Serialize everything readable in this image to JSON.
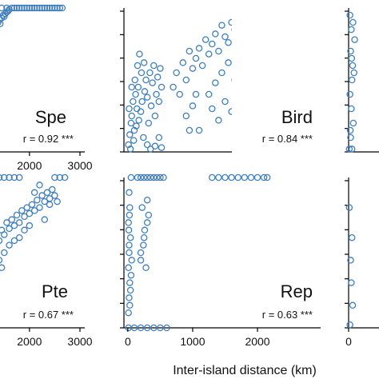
{
  "figure": {
    "x_axis_title": "Inter-island distance (km)"
  },
  "chart_data": [
    {
      "id": "spe",
      "type": "scatter",
      "label": "Spe",
      "stat": "r = 0.92 ***",
      "xlim": [
        1100,
        3000
      ],
      "ylim": [
        0,
        1
      ],
      "xticks": [
        2000,
        3000
      ],
      "xtick_labels": [
        "2000",
        "3000"
      ],
      "point_color": "#3f7fbf",
      "points": [
        [
          1100,
          0.7
        ],
        [
          1150,
          0.74
        ],
        [
          1180,
          0.78
        ],
        [
          1200,
          0.72
        ],
        [
          1230,
          0.8
        ],
        [
          1250,
          0.83
        ],
        [
          1280,
          0.76
        ],
        [
          1300,
          0.85
        ],
        [
          1320,
          0.88
        ],
        [
          1350,
          0.86
        ],
        [
          1380,
          0.9
        ],
        [
          1400,
          0.92
        ],
        [
          1420,
          0.89
        ],
        [
          1450,
          0.93
        ],
        [
          1480,
          0.95
        ],
        [
          1500,
          0.94
        ],
        [
          1520,
          0.96
        ],
        [
          1550,
          0.97
        ],
        [
          1580,
          0.98
        ],
        [
          1600,
          0.99
        ],
        [
          1650,
          1.0
        ],
        [
          1700,
          1.0
        ],
        [
          1750,
          1.0
        ],
        [
          1800,
          1.0
        ],
        [
          1850,
          1.0
        ],
        [
          1900,
          1.0
        ],
        [
          1950,
          1.0
        ],
        [
          2000,
          1.0
        ],
        [
          2050,
          1.0
        ],
        [
          2100,
          1.0
        ],
        [
          2150,
          1.0
        ],
        [
          2200,
          1.0
        ],
        [
          2250,
          1.0
        ],
        [
          2300,
          1.0
        ],
        [
          2350,
          1.0
        ],
        [
          2400,
          1.0
        ],
        [
          2450,
          1.0
        ],
        [
          2500,
          1.0
        ],
        [
          2550,
          1.0
        ],
        [
          2600,
          1.0
        ],
        [
          2650,
          1.0
        ],
        [
          1200,
          0.6
        ],
        [
          1160,
          0.64
        ],
        [
          1250,
          0.66
        ],
        [
          1300,
          0.92
        ],
        [
          1450,
          1.0
        ],
        [
          1550,
          1.0
        ],
        [
          1250,
          0.95
        ]
      ]
    },
    {
      "id": "bird",
      "type": "scatter",
      "label": "Bird",
      "stat": "r = 0.84 ***",
      "xlim": [
        -60,
        2900
      ],
      "ylim": [
        0,
        1
      ],
      "xticks": [],
      "xtick_labels": [],
      "point_color": "#3f7fbf",
      "points": [
        [
          10,
          0.05
        ],
        [
          30,
          0.12
        ],
        [
          50,
          0.2
        ],
        [
          20,
          0.3
        ],
        [
          60,
          0.25
        ],
        [
          80,
          0.35
        ],
        [
          100,
          0.15
        ],
        [
          120,
          0.4
        ],
        [
          140,
          0.3
        ],
        [
          160,
          0.45
        ],
        [
          40,
          0.02
        ],
        [
          90,
          0.08
        ],
        [
          130,
          0.18
        ],
        [
          170,
          0.22
        ],
        [
          200,
          0.28
        ],
        [
          220,
          0.35
        ],
        [
          240,
          0.1
        ],
        [
          260,
          0.42
        ],
        [
          280,
          0.5
        ],
        [
          300,
          0.38
        ],
        [
          320,
          0.2
        ],
        [
          340,
          0.55
        ],
        [
          360,
          0.32
        ],
        [
          380,
          0.48
        ],
        [
          400,
          0.6
        ],
        [
          420,
          0.25
        ],
        [
          440,
          0.4
        ],
        [
          460,
          0.52
        ],
        [
          480,
          0.35
        ],
        [
          500,
          0.58
        ],
        [
          520,
          0.45
        ],
        [
          150,
          0.6
        ],
        [
          180,
          0.68
        ],
        [
          210,
          0.55
        ],
        [
          250,
          0.62
        ],
        [
          110,
          0.5
        ],
        [
          60,
          0.45
        ],
        [
          300,
          0.05
        ],
        [
          350,
          0.02
        ],
        [
          420,
          0.04
        ],
        [
          480,
          0.1
        ],
        [
          520,
          0.03
        ],
        [
          700,
          0.45
        ],
        [
          750,
          0.55
        ],
        [
          800,
          0.4
        ],
        [
          850,
          0.62
        ],
        [
          900,
          0.5
        ],
        [
          950,
          0.7
        ],
        [
          1000,
          0.58
        ],
        [
          1050,
          0.65
        ],
        [
          1100,
          0.72
        ],
        [
          1150,
          0.6
        ],
        [
          1200,
          0.78
        ],
        [
          1250,
          0.68
        ],
        [
          1300,
          0.75
        ],
        [
          1350,
          0.82
        ],
        [
          1400,
          0.7
        ],
        [
          1450,
          0.88
        ],
        [
          1500,
          0.8
        ],
        [
          1550,
          0.76
        ],
        [
          1600,
          0.9
        ],
        [
          1650,
          0.85
        ],
        [
          1700,
          0.92
        ],
        [
          1750,
          0.87
        ],
        [
          1800,
          0.95
        ],
        [
          1850,
          0.9
        ],
        [
          1900,
          0.93
        ],
        [
          1950,
          0.96
        ],
        [
          2000,
          0.97
        ],
        [
          2100,
          0.94
        ],
        [
          2200,
          0.98
        ],
        [
          2300,
          0.93
        ],
        [
          2400,
          0.96
        ],
        [
          2500,
          0.95
        ],
        [
          2600,
          0.92
        ],
        [
          2700,
          0.94
        ],
        [
          1300,
          0.3
        ],
        [
          1400,
          0.22
        ],
        [
          1500,
          0.35
        ],
        [
          1600,
          0.28
        ],
        [
          1700,
          0.4
        ],
        [
          1800,
          0.33
        ],
        [
          1900,
          0.5
        ],
        [
          2000,
          0.45
        ],
        [
          1100,
          0.15
        ],
        [
          1250,
          0.4
        ],
        [
          1350,
          0.48
        ],
        [
          1450,
          0.55
        ],
        [
          1550,
          0.62
        ],
        [
          1650,
          0.5
        ],
        [
          1750,
          0.7
        ],
        [
          1850,
          0.65
        ],
        [
          1950,
          0.75
        ],
        [
          2050,
          0.82
        ],
        [
          2150,
          0.88
        ],
        [
          900,
          0.25
        ],
        [
          1000,
          0.32
        ],
        [
          950,
          0.15
        ],
        [
          1050,
          0.4
        ],
        [
          2250,
          0.9
        ],
        [
          2350,
          0.99
        ],
        [
          2450,
          0.97
        ]
      ]
    },
    {
      "id": "right-top",
      "type": "scatter",
      "label": "",
      "stat": "",
      "xlim": [
        0,
        1000
      ],
      "ylim": [
        0,
        1
      ],
      "xticks": [],
      "xtick_labels": [],
      "point_color": "#3f7fbf",
      "points": [
        [
          20,
          0.95
        ],
        [
          40,
          0.85
        ],
        [
          30,
          0.7
        ],
        [
          60,
          0.6
        ],
        [
          50,
          0.5
        ],
        [
          20,
          0.4
        ],
        [
          40,
          0.3
        ],
        [
          70,
          0.2
        ],
        [
          30,
          0.1
        ],
        [
          50,
          0.02
        ],
        [
          10,
          0.02
        ],
        [
          80,
          0.55
        ],
        [
          90,
          0.78
        ],
        [
          25,
          0.15
        ],
        [
          65,
          0.9
        ],
        [
          45,
          0.65
        ]
      ]
    },
    {
      "id": "pte",
      "type": "scatter",
      "label": "Pte",
      "stat": "r = 0.67 ***",
      "xlim": [
        1100,
        3000
      ],
      "ylim": [
        0,
        1
      ],
      "xticks": [
        2000,
        3000
      ],
      "xtick_labels": [
        "2000",
        "3000"
      ],
      "point_color": "#3f7fbf",
      "points": [
        [
          1100,
          0.5
        ],
        [
          1150,
          0.45
        ],
        [
          1200,
          0.55
        ],
        [
          1250,
          0.48
        ],
        [
          1300,
          0.6
        ],
        [
          1350,
          0.52
        ],
        [
          1400,
          0.58
        ],
        [
          1450,
          0.65
        ],
        [
          1500,
          0.62
        ],
        [
          1550,
          0.7
        ],
        [
          1600,
          0.66
        ],
        [
          1650,
          0.72
        ],
        [
          1700,
          0.68
        ],
        [
          1750,
          0.75
        ],
        [
          1800,
          0.7
        ],
        [
          1850,
          0.78
        ],
        [
          1900,
          0.74
        ],
        [
          1950,
          0.8
        ],
        [
          2000,
          0.76
        ],
        [
          2050,
          0.82
        ],
        [
          2100,
          0.78
        ],
        [
          2150,
          0.85
        ],
        [
          2200,
          0.8
        ],
        [
          2250,
          0.88
        ],
        [
          2300,
          0.84
        ],
        [
          2350,
          0.9
        ],
        [
          2400,
          0.86
        ],
        [
          2450,
          0.92
        ],
        [
          2500,
          0.88
        ],
        [
          2550,
          0.84
        ],
        [
          1100,
          0.35
        ],
        [
          1200,
          0.4
        ],
        [
          1300,
          0.42
        ],
        [
          1400,
          0.45
        ],
        [
          1500,
          0.5
        ],
        [
          1600,
          0.55
        ],
        [
          1700,
          0.58
        ],
        [
          1800,
          0.6
        ],
        [
          1900,
          0.65
        ],
        [
          2000,
          0.68
        ],
        [
          1150,
          0.3
        ],
        [
          1250,
          0.32
        ],
        [
          1350,
          0.38
        ],
        [
          1450,
          0.4
        ],
        [
          1100,
          1.0
        ],
        [
          1200,
          1.0
        ],
        [
          1300,
          1.0
        ],
        [
          1400,
          1.0
        ],
        [
          1500,
          1.0
        ],
        [
          1600,
          1.0
        ],
        [
          1700,
          1.0
        ],
        [
          1800,
          1.0
        ],
        [
          2500,
          1.0
        ],
        [
          2600,
          1.0
        ],
        [
          2700,
          1.0
        ],
        [
          1100,
          0.0
        ],
        [
          1200,
          0.0
        ],
        [
          1300,
          0.0
        ],
        [
          1100,
          0.2
        ],
        [
          1150,
          0.25
        ],
        [
          1200,
          0.22
        ],
        [
          1250,
          0.28
        ],
        [
          2100,
          0.9
        ],
        [
          2200,
          0.95
        ],
        [
          2300,
          0.72
        ],
        [
          2400,
          0.82
        ]
      ]
    },
    {
      "id": "rep",
      "type": "scatter",
      "label": "Rep",
      "stat": "r = 0.63 ***",
      "xlim": [
        -60,
        2900
      ],
      "ylim": [
        0,
        1
      ],
      "xticks": [
        0,
        1000,
        2000
      ],
      "xtick_labels": [
        "0",
        "1000",
        "2000"
      ],
      "point_color": "#3f7fbf",
      "points": [
        [
          10,
          0.1
        ],
        [
          20,
          0.2
        ],
        [
          30,
          0.3
        ],
        [
          10,
          0.4
        ],
        [
          20,
          0.5
        ],
        [
          40,
          0.6
        ],
        [
          10,
          0.7
        ],
        [
          30,
          0.8
        ],
        [
          20,
          0.9
        ],
        [
          50,
          1.0
        ],
        [
          150,
          1.0
        ],
        [
          200,
          1.0
        ],
        [
          250,
          1.0
        ],
        [
          300,
          1.0
        ],
        [
          350,
          1.0
        ],
        [
          400,
          1.0
        ],
        [
          450,
          1.0
        ],
        [
          500,
          1.0
        ],
        [
          550,
          1.0
        ],
        [
          1300,
          1.0
        ],
        [
          1400,
          1.0
        ],
        [
          1500,
          1.0
        ],
        [
          1600,
          1.0
        ],
        [
          1700,
          1.0
        ],
        [
          1800,
          1.0
        ],
        [
          1900,
          1.0
        ],
        [
          2000,
          1.0
        ],
        [
          2100,
          1.0
        ],
        [
          2150,
          1.0
        ],
        [
          10,
          0.0
        ],
        [
          100,
          0.0
        ],
        [
          200,
          0.0
        ],
        [
          300,
          0.0
        ],
        [
          400,
          0.0
        ],
        [
          500,
          0.0
        ],
        [
          600,
          0.0
        ],
        [
          200,
          0.5
        ],
        [
          250,
          0.6
        ],
        [
          300,
          0.7
        ],
        [
          220,
          0.8
        ],
        [
          280,
          0.4
        ],
        [
          240,
          0.55
        ],
        [
          260,
          0.65
        ],
        [
          320,
          0.75
        ],
        [
          200,
          0.45
        ],
        [
          300,
          0.85
        ],
        [
          30,
          0.15
        ],
        [
          40,
          0.25
        ],
        [
          50,
          0.35
        ],
        [
          60,
          0.45
        ],
        [
          20,
          0.55
        ],
        [
          15,
          0.65
        ],
        [
          25,
          0.75
        ]
      ]
    },
    {
      "id": "right-bottom",
      "type": "scatter",
      "label": "",
      "stat": "",
      "xlim": [
        0,
        1000
      ],
      "ylim": [
        0,
        1
      ],
      "xticks": [
        0
      ],
      "xtick_labels": [
        "0"
      ],
      "point_color": "#3f7fbf",
      "points": [
        [
          20,
          0.02
        ],
        [
          40,
          0.3
        ],
        [
          30,
          0.45
        ],
        [
          50,
          0.6
        ],
        [
          60,
          0.15
        ],
        [
          10,
          0.8
        ]
      ]
    }
  ]
}
